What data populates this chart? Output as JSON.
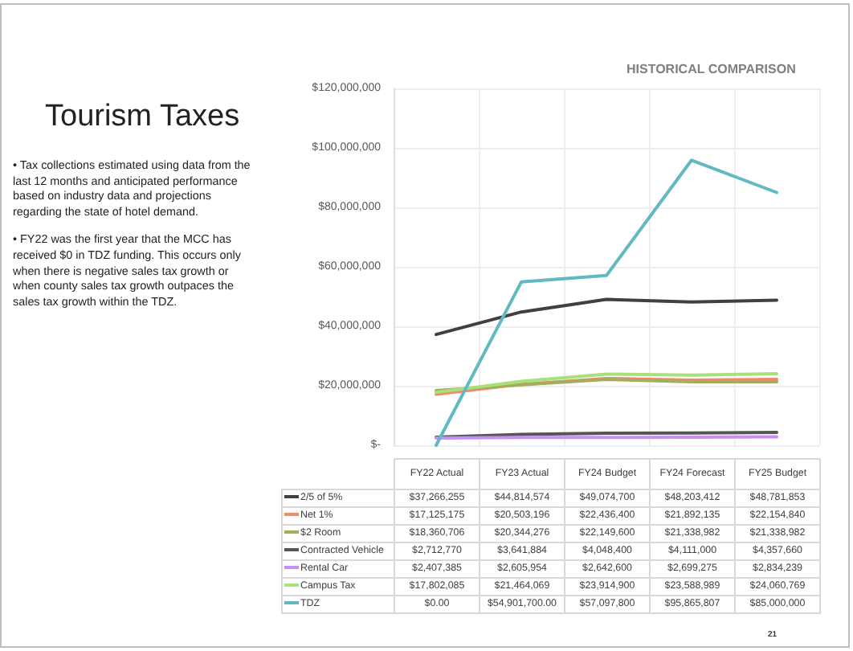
{
  "chart_data": {
    "type": "line",
    "title": "HISTORICAL COMPARISON",
    "annotations": [
      "Tourism Taxes",
      "• Tax collections estimated using data from the last 12 months and anticipated performance based on industry data and projections regarding the state of hotel demand.",
      "• FY22 was the first year that the MCC has received $0 in TDZ funding. This occurs only when there is negative sales tax growth or when county sales tax growth outpaces the sales tax growth within the TDZ.",
      "21"
    ],
    "categories": [
      "FY22 Actual",
      "FY23 Actual",
      "FY24 Budget",
      "FY24 Forecast",
      "FY25 Budget"
    ],
    "series": [
      {
        "name": "2/5 of 5%",
        "color": "#404040",
        "values": [
          37266255,
          44814574,
          49074700,
          48203412,
          48781853
        ],
        "value_labels": [
          "$37,266,255",
          "$44,814,574",
          "$49,074,700",
          "$48,203,412",
          "$48,781,853"
        ]
      },
      {
        "name": "Net 1%",
        "color": "#f08a6a",
        "values": [
          17125175,
          20503196,
          22436400,
          21892135,
          22154840
        ],
        "value_labels": [
          "$17,125,175",
          "$20,503,196",
          "$22,436,400",
          "$21,892,135",
          "$22,154,840"
        ]
      },
      {
        "name": "$2 Room",
        "color": "#a3ad5c",
        "values": [
          18360706,
          20344276,
          22149600,
          21338982,
          21338982
        ],
        "value_labels": [
          "$18,360,706",
          "$20,344,276",
          "$22,149,600",
          "$21,338,982",
          "$21,338,982"
        ]
      },
      {
        "name": "Contracted Vehicle",
        "color": "#555555",
        "values": [
          2712770,
          3641884,
          4048400,
          4111000,
          4357660
        ],
        "value_labels": [
          "$2,712,770",
          "$3,641,884",
          "$4,048,400",
          "$4,111,000",
          "$4,357,660"
        ]
      },
      {
        "name": "Rental Car",
        "color": "#c88ef0",
        "values": [
          2407385,
          2605954,
          2642600,
          2699275,
          2834239
        ],
        "value_labels": [
          "$2,407,385",
          "$2,605,954",
          "$2,642,600",
          "$2,699,275",
          "$2,834,239"
        ]
      },
      {
        "name": "Campus Tax",
        "color": "#a8e07a",
        "values": [
          17802085,
          21464069,
          23914900,
          23588989,
          24060769
        ],
        "value_labels": [
          "$17,802,085",
          "$21,464,069",
          "$23,914,900",
          "$23,588,989",
          "$24,060,769"
        ]
      },
      {
        "name": "TDZ",
        "color": "#62b9c2",
        "values": [
          0,
          54901700,
          57097800,
          95865807,
          85000000
        ],
        "value_labels": [
          "$0.00",
          "$54,901,700.00",
          "$57,097,800",
          "$95,865,807",
          "$85,000,000"
        ]
      }
    ],
    "ylim": [
      0,
      120000000
    ],
    "yticks": [
      {
        "value": 0,
        "label": "$-"
      },
      {
        "value": 20000000,
        "label": "$20,000,000"
      },
      {
        "value": 40000000,
        "label": "$40,000,000"
      },
      {
        "value": 60000000,
        "label": "$60,000,000"
      },
      {
        "value": 80000000,
        "label": "$80,000,000"
      },
      {
        "value": 100000000,
        "label": "$100,000,000"
      },
      {
        "value": 120000000,
        "label": "$120,000,000"
      }
    ],
    "grid": true,
    "legend": "bottom",
    "marker": "none",
    "line_style": "solid"
  }
}
